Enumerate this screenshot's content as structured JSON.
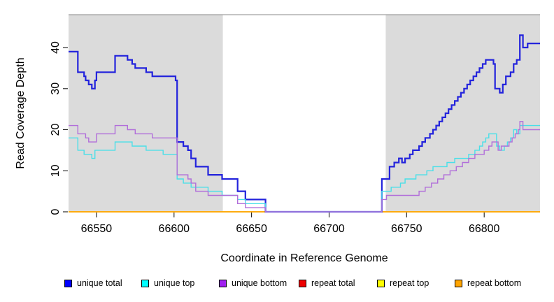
{
  "chart_data": {
    "type": "line",
    "subtype": "step",
    "xlabel": "Coordinate in Reference Genome",
    "ylabel": "Read Coverage Depth",
    "xlim": [
      66532,
      66836
    ],
    "ylim": [
      0,
      48
    ],
    "x_ticks": [
      66550,
      66600,
      66650,
      66700,
      66750,
      66800
    ],
    "y_ticks": [
      0,
      10,
      20,
      30,
      40
    ],
    "grid": false,
    "legend_position": "bottom-horizontal",
    "shaded_regions": {
      "color": "#DBDBDB",
      "border_top_color": "#8A8A8A",
      "ranges": [
        [
          66532,
          66631.5
        ],
        [
          66736.5,
          66836
        ]
      ]
    },
    "series": [
      {
        "name": "unique total",
        "color": "#2323DC",
        "swatch": "#0000FF",
        "width": 2.2,
        "points": [
          [
            66532,
            39
          ],
          [
            66538,
            34
          ],
          [
            66542,
            33
          ],
          [
            66543,
            32
          ],
          [
            66545,
            31
          ],
          [
            66547,
            30
          ],
          [
            66549,
            32
          ],
          [
            66550,
            34
          ],
          [
            66562,
            38
          ],
          [
            66570,
            37
          ],
          [
            66573,
            36
          ],
          [
            66575,
            35
          ],
          [
            66582,
            34
          ],
          [
            66586,
            33
          ],
          [
            66601,
            32
          ],
          [
            66602,
            17
          ],
          [
            66606,
            16
          ],
          [
            66609,
            15
          ],
          [
            66611,
            13
          ],
          [
            66614,
            11
          ],
          [
            66622,
            9
          ],
          [
            66631,
            8
          ],
          [
            66641,
            5
          ],
          [
            66646,
            3
          ],
          [
            66659,
            0
          ],
          [
            66734,
            8
          ],
          [
            66739,
            11
          ],
          [
            66742,
            12
          ],
          [
            66745,
            13
          ],
          [
            66747,
            12
          ],
          [
            66749,
            13
          ],
          [
            66752,
            14
          ],
          [
            66754,
            15
          ],
          [
            66758,
            16
          ],
          [
            66760,
            17
          ],
          [
            66762,
            18
          ],
          [
            66765,
            19
          ],
          [
            66767,
            20
          ],
          [
            66769,
            21
          ],
          [
            66771,
            22
          ],
          [
            66773,
            23
          ],
          [
            66775,
            24
          ],
          [
            66777,
            25
          ],
          [
            66779,
            26
          ],
          [
            66781,
            27
          ],
          [
            66783,
            28
          ],
          [
            66785,
            29
          ],
          [
            66787,
            30
          ],
          [
            66789,
            31
          ],
          [
            66791,
            32
          ],
          [
            66793,
            33
          ],
          [
            66795,
            34
          ],
          [
            66797,
            35
          ],
          [
            66799,
            36
          ],
          [
            66801,
            37
          ],
          [
            66806,
            36
          ],
          [
            66807,
            30
          ],
          [
            66810,
            29
          ],
          [
            66812,
            31
          ],
          [
            66814,
            33
          ],
          [
            66817,
            34
          ],
          [
            66819,
            36
          ],
          [
            66821,
            37
          ],
          [
            66823,
            43
          ],
          [
            66825,
            40
          ],
          [
            66828,
            41
          ],
          [
            66836,
            41
          ]
        ]
      },
      {
        "name": "unique top",
        "color": "#49DFE8",
        "swatch": "#00FFFF",
        "width": 1.4,
        "points": [
          [
            66532,
            18
          ],
          [
            66538,
            15
          ],
          [
            66542,
            14
          ],
          [
            66547,
            13
          ],
          [
            66549,
            15
          ],
          [
            66562,
            17
          ],
          [
            66573,
            16
          ],
          [
            66582,
            15
          ],
          [
            66593,
            14
          ],
          [
            66602,
            8
          ],
          [
            66606,
            7
          ],
          [
            66611,
            6
          ],
          [
            66622,
            5
          ],
          [
            66631,
            4
          ],
          [
            66641,
            3
          ],
          [
            66646,
            2
          ],
          [
            66659,
            0
          ],
          [
            66734,
            5
          ],
          [
            66740,
            6
          ],
          [
            66746,
            7
          ],
          [
            66749,
            8
          ],
          [
            66756,
            9
          ],
          [
            66763,
            10
          ],
          [
            66767,
            11
          ],
          [
            66776,
            12
          ],
          [
            66781,
            13
          ],
          [
            66790,
            14
          ],
          [
            66794,
            15
          ],
          [
            66797,
            16
          ],
          [
            66799,
            17
          ],
          [
            66801,
            18
          ],
          [
            66803,
            19
          ],
          [
            66808,
            16
          ],
          [
            66810,
            15
          ],
          [
            66813,
            16
          ],
          [
            66815,
            17
          ],
          [
            66817,
            18
          ],
          [
            66819,
            20
          ],
          [
            66821,
            19
          ],
          [
            66823,
            21
          ],
          [
            66836,
            21
          ]
        ]
      },
      {
        "name": "unique bottom",
        "color": "#B16EDA",
        "swatch": "#A020F0",
        "width": 1.4,
        "points": [
          [
            66532,
            21
          ],
          [
            66538,
            19
          ],
          [
            66543,
            18
          ],
          [
            66545,
            17
          ],
          [
            66550,
            19
          ],
          [
            66562,
            21
          ],
          [
            66570,
            20
          ],
          [
            66575,
            19
          ],
          [
            66586,
            18
          ],
          [
            66602,
            9
          ],
          [
            66609,
            8
          ],
          [
            66611,
            7
          ],
          [
            66614,
            5
          ],
          [
            66622,
            4
          ],
          [
            66641,
            2
          ],
          [
            66646,
            1
          ],
          [
            66659,
            0
          ],
          [
            66734,
            3
          ],
          [
            66737,
            4
          ],
          [
            66758,
            5
          ],
          [
            66762,
            6
          ],
          [
            66766,
            7
          ],
          [
            66770,
            8
          ],
          [
            66774,
            9
          ],
          [
            66778,
            10
          ],
          [
            66782,
            11
          ],
          [
            66786,
            12
          ],
          [
            66790,
            13
          ],
          [
            66794,
            14
          ],
          [
            66800,
            15
          ],
          [
            66803,
            16
          ],
          [
            66805,
            17
          ],
          [
            66809,
            15
          ],
          [
            66811,
            16
          ],
          [
            66816,
            17
          ],
          [
            66818,
            18
          ],
          [
            66820,
            19
          ],
          [
            66822,
            20
          ],
          [
            66823,
            22
          ],
          [
            66825,
            20
          ],
          [
            66836,
            20
          ]
        ]
      },
      {
        "name": "repeat total",
        "color": "#EE0000",
        "swatch": "#EE0000",
        "width": 1.4,
        "points": [
          [
            66532,
            0
          ],
          [
            66836,
            0
          ]
        ]
      },
      {
        "name": "repeat top",
        "color": "#FFFF00",
        "swatch": "#FFFF00",
        "width": 1.4,
        "points": [
          [
            66532,
            0
          ],
          [
            66836,
            0
          ]
        ]
      },
      {
        "name": "repeat bottom",
        "color": "#FFA500",
        "swatch": "#FFA500",
        "width": 1.6,
        "points": [
          [
            66532,
            0
          ],
          [
            66836,
            0
          ]
        ]
      }
    ]
  }
}
